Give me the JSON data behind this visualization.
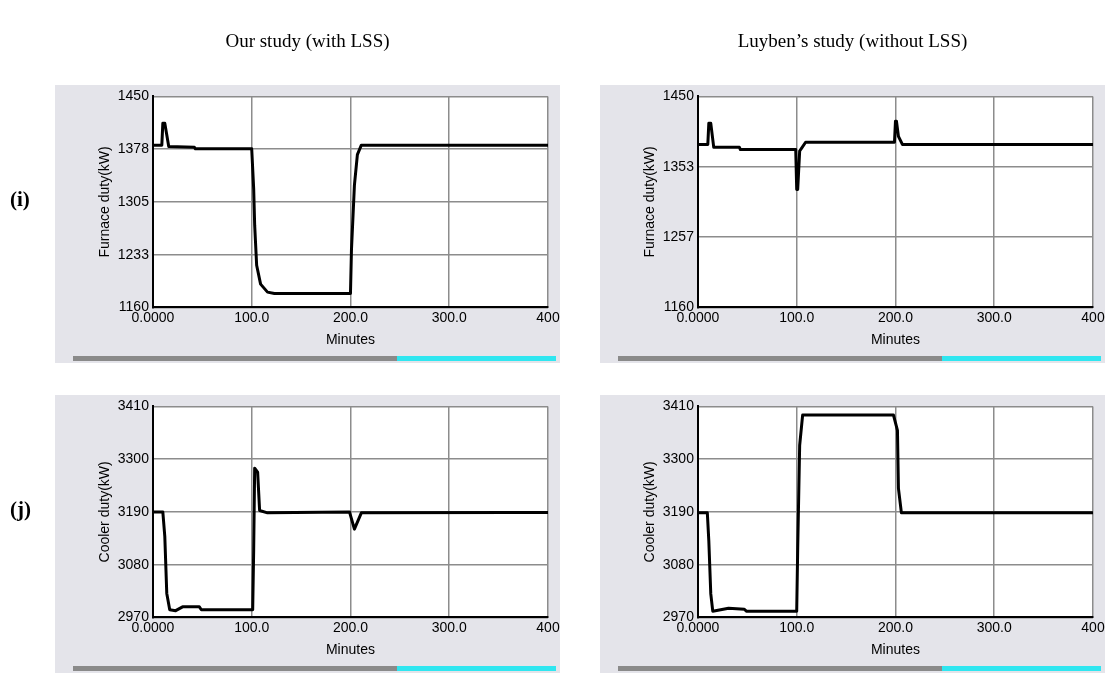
{
  "chart_data": [
    {
      "type": "line",
      "title": "Our study (with LSS)",
      "annotations": [
        "(i)"
      ],
      "xlabel": "Minutes",
      "ylabel": "Furnace duty(kW)",
      "color": "#000000",
      "grid": true,
      "legend": false,
      "marker": "none",
      "x": [
        0,
        9,
        10,
        12,
        16,
        42,
        43,
        100,
        102,
        103,
        105,
        109,
        116,
        123,
        200,
        201,
        204,
        207,
        211,
        400
      ],
      "values": [
        1383,
        1383,
        1413,
        1413,
        1381,
        1380,
        1378,
        1378,
        1323,
        1273,
        1218,
        1192,
        1181,
        1179,
        1179,
        1239,
        1328,
        1370,
        1383,
        1383
      ],
      "xlim": [
        0,
        400
      ],
      "xticks": [
        {
          "value": 0,
          "label": "0.0000"
        },
        {
          "value": 100,
          "label": "100.0"
        },
        {
          "value": 200,
          "label": "200.0"
        },
        {
          "value": 300,
          "label": "300.0"
        },
        {
          "value": 400,
          "label": "400"
        }
      ],
      "ylim": [
        1160,
        1450
      ],
      "yticks": [
        1160,
        {
          "value": 1232.5,
          "label": "1233"
        },
        1305,
        {
          "value": 1377.5,
          "label": "1378"
        },
        1450
      ]
    },
    {
      "type": "line",
      "title": "Luyben’s study (without LSS)",
      "xlabel": "Minutes",
      "ylabel": "Furnace duty(kW)",
      "color": "#000000",
      "grid": true,
      "legend": false,
      "marker": "none",
      "x": [
        0,
        10,
        11,
        13,
        16,
        42,
        43,
        99,
        100,
        101,
        103,
        105,
        109,
        199,
        200,
        201,
        203,
        207,
        400
      ],
      "values": [
        1384,
        1384,
        1413,
        1413,
        1380,
        1380,
        1377,
        1377,
        1322,
        1322,
        1375,
        1379,
        1387,
        1387,
        1416,
        1416,
        1395,
        1384,
        1384
      ],
      "xlim": [
        0,
        400
      ],
      "xticks": [
        {
          "value": 0,
          "label": "0.0000"
        },
        {
          "value": 100,
          "label": "100.0"
        },
        {
          "value": 200,
          "label": "200.0"
        },
        {
          "value": 300,
          "label": "300.0"
        },
        {
          "value": 400,
          "label": "400"
        }
      ],
      "ylim": [
        1160,
        1450
      ],
      "yticks": [
        1160,
        {
          "value": 1256.67,
          "label": "1257"
        },
        {
          "value": 1353.33,
          "label": "1353"
        },
        1450
      ]
    },
    {
      "type": "line",
      "annotations": [
        "(j)"
      ],
      "xlabel": "Minutes",
      "ylabel": "Cooler duty(kW)",
      "color": "#000000",
      "grid": true,
      "legend": false,
      "marker": "none",
      "x": [
        0,
        10,
        12,
        14,
        17,
        23,
        30,
        47,
        49,
        101,
        102,
        103,
        106,
        108,
        116,
        199,
        204,
        211,
        400
      ],
      "values": [
        3190,
        3190,
        3139,
        3020,
        2986,
        2984,
        2992,
        2992,
        2986,
        2986,
        3111,
        3281,
        3273,
        3193,
        3188,
        3190,
        3154,
        3188,
        3189
      ],
      "xlim": [
        0,
        400
      ],
      "xticks": [
        {
          "value": 0,
          "label": "0.0000"
        },
        {
          "value": 100,
          "label": "100.0"
        },
        {
          "value": 200,
          "label": "200.0"
        },
        {
          "value": 300,
          "label": "300.0"
        },
        {
          "value": 400,
          "label": "400"
        }
      ],
      "ylim": [
        2970,
        3410
      ],
      "yticks": [
        2970,
        3080,
        3190,
        3300,
        3410
      ]
    },
    {
      "type": "line",
      "xlabel": "Minutes",
      "ylabel": "Cooler duty(kW)",
      "color": "#000000",
      "grid": true,
      "legend": false,
      "marker": "none",
      "x": [
        0,
        9.5,
        11,
        13,
        15,
        31,
        47,
        49,
        100,
        101,
        103,
        106,
        198,
        202,
        203,
        206,
        400
      ],
      "values": [
        3188,
        3188,
        3130,
        3019,
        2983,
        2989,
        2987,
        2983,
        2983,
        3113,
        3329,
        3392,
        3392,
        3360,
        3239,
        3188,
        3188
      ],
      "xlim": [
        0,
        400
      ],
      "xticks": [
        {
          "value": 0,
          "label": "0.0000"
        },
        {
          "value": 100,
          "label": "100.0"
        },
        {
          "value": 200,
          "label": "200.0"
        },
        {
          "value": 300,
          "label": "300.0"
        },
        {
          "value": 400,
          "label": "400"
        }
      ],
      "ylim": [
        2970,
        3410
      ],
      "yticks": [
        2970,
        3080,
        3190,
        3300,
        3410
      ]
    }
  ]
}
